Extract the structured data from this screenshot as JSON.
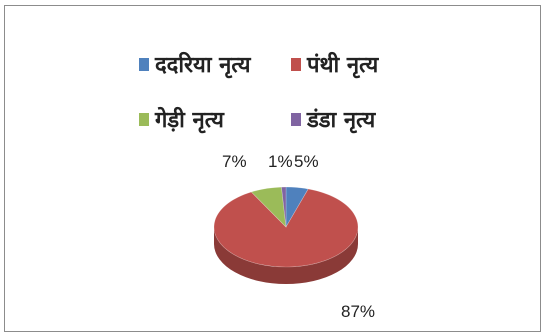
{
  "chart_data": {
    "type": "pie",
    "title": "",
    "legend_position": "top",
    "slices": [
      {
        "label": "ददरिया नृत्य",
        "value": 5,
        "value_label": "5%",
        "color": "#4f81bd"
      },
      {
        "label": "पंथी नृत्य",
        "value": 87,
        "value_label": "87%",
        "color": "#c0504d"
      },
      {
        "label": "गेड़ी नृत्य",
        "value": 7,
        "value_label": "7%",
        "color": "#9bbb59"
      },
      {
        "label": "डंडा नृत्य",
        "value": 1,
        "value_label": "1%",
        "color": "#8064a2"
      }
    ]
  }
}
